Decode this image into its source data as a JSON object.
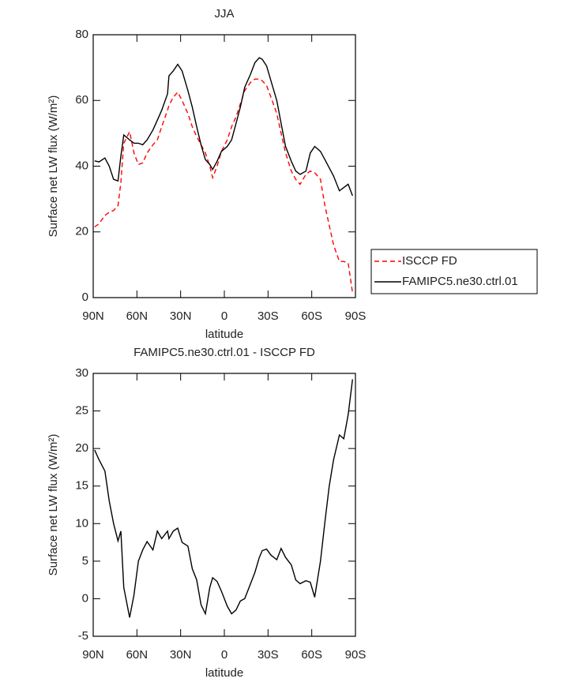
{
  "chart_data": [
    {
      "type": "line",
      "title": "JJA",
      "xlabel": "latitude",
      "ylabel": "Surface net LW flux (W/m²)",
      "x": [
        89,
        86,
        82,
        79,
        76,
        73,
        71,
        69,
        65,
        62,
        59,
        56,
        53,
        49,
        46,
        43,
        39,
        38,
        35,
        32,
        29,
        25,
        22,
        19,
        16,
        13,
        10,
        8,
        5,
        2,
        -2,
        -5,
        -8,
        -11,
        -14,
        -18,
        -21,
        -24,
        -26,
        -29,
        -32,
        -36,
        -39,
        -42,
        -46,
        -49,
        -52,
        -56,
        -59,
        -62,
        -66,
        -69,
        -72,
        -75,
        -79,
        -82,
        -85,
        -88
      ],
      "series": [
        {
          "name": "ISCCP FD",
          "color": "#ff0000",
          "linestyle": "dashed",
          "values": [
            21.5,
            22.5,
            25,
            26,
            26.5,
            28,
            35,
            47,
            50.5,
            44,
            40.5,
            41,
            44,
            46.5,
            48,
            52,
            57,
            58.5,
            61,
            62.5,
            60,
            56,
            52,
            49,
            46.5,
            44,
            40,
            36.5,
            40,
            44.5,
            48,
            52,
            55,
            59,
            63,
            65.5,
            66.5,
            66.5,
            66,
            64.5,
            61,
            56,
            50,
            44,
            38.5,
            36,
            34.5,
            37.5,
            38.5,
            38,
            36,
            28,
            22,
            16,
            11,
            11,
            10.5,
            1.5
          ]
        },
        {
          "name": "FAMIPC5.ne30.ctrl.01",
          "color": "#000000",
          "linestyle": "solid",
          "values": [
            41.6,
            41.3,
            42.5,
            40,
            36,
            35.5,
            43,
            49.5,
            48,
            47,
            47,
            46.5,
            48,
            51,
            54,
            57,
            62,
            67.5,
            69,
            71,
            69,
            63,
            58,
            52,
            46.5,
            42,
            40.5,
            39,
            41.5,
            44.5,
            46,
            48,
            53,
            58,
            64,
            68,
            71.5,
            73,
            72.5,
            70.5,
            66,
            60,
            53,
            46,
            41.5,
            38.5,
            37.5,
            38.5,
            44,
            46,
            44.5,
            42,
            39.5,
            37,
            32.5,
            33.5,
            34.5,
            31
          ]
        }
      ],
      "xlim": [
        90,
        -90
      ],
      "xticks": [
        {
          "value": 90,
          "label": "90N"
        },
        {
          "value": 60,
          "label": "60N"
        },
        {
          "value": 30,
          "label": "30N"
        },
        0,
        {
          "value": -30,
          "label": "30S"
        },
        {
          "value": -60,
          "label": "60S"
        },
        {
          "value": -90,
          "label": "90S"
        }
      ],
      "ylim": [
        0,
        80
      ],
      "yticks": [
        0,
        20,
        40,
        60,
        80
      ],
      "legend": "right"
    },
    {
      "type": "line",
      "title": "FAMIPC5.ne30.ctrl.01 - ISCCP FD",
      "xlabel": "latitude",
      "ylabel": "Surface net LW flux (W/m²)",
      "x": [
        89,
        86,
        82,
        79,
        76,
        73,
        71,
        69,
        65,
        62,
        59,
        56,
        53,
        49,
        46,
        43,
        39,
        38,
        35,
        32,
        29,
        25,
        22,
        19,
        16,
        13,
        10,
        8,
        5,
        2,
        -2,
        -5,
        -8,
        -11,
        -14,
        -18,
        -21,
        -24,
        -26,
        -29,
        -32,
        -36,
        -39,
        -42,
        -46,
        -49,
        -52,
        -56,
        -59,
        -62,
        -66,
        -69,
        -72,
        -75,
        -79,
        -82,
        -85,
        -88
      ],
      "color": "#000000",
      "values": [
        19.8,
        18.5,
        17,
        13,
        10,
        7.7,
        9,
        1.5,
        -2.5,
        0.5,
        5,
        6.5,
        7.6,
        6.5,
        9,
        8,
        9,
        8,
        9,
        9.4,
        7.5,
        7,
        4,
        2.5,
        -0.8,
        -2,
        1.5,
        2.8,
        2.3,
        1,
        -1,
        -2,
        -1.5,
        -0.3,
        0,
        2,
        3.5,
        5.5,
        6.4,
        6.6,
        5.8,
        5.2,
        6.7,
        5.5,
        4.5,
        2.5,
        2,
        2.4,
        2.2,
        0.2,
        5,
        10.2,
        15,
        18.5,
        21.8,
        21.3,
        24.5,
        29.2
      ],
      "xlim": [
        90,
        -90
      ],
      "xticks": [
        {
          "value": 90,
          "label": "90N"
        },
        {
          "value": 60,
          "label": "60N"
        },
        {
          "value": 30,
          "label": "30N"
        },
        0,
        {
          "value": -30,
          "label": "30S"
        },
        {
          "value": -60,
          "label": "60S"
        },
        {
          "value": -90,
          "label": "90S"
        }
      ],
      "ylim": [
        -5,
        30
      ],
      "yticks": [
        -5,
        0,
        5,
        10,
        15,
        20,
        25,
        30
      ]
    }
  ]
}
